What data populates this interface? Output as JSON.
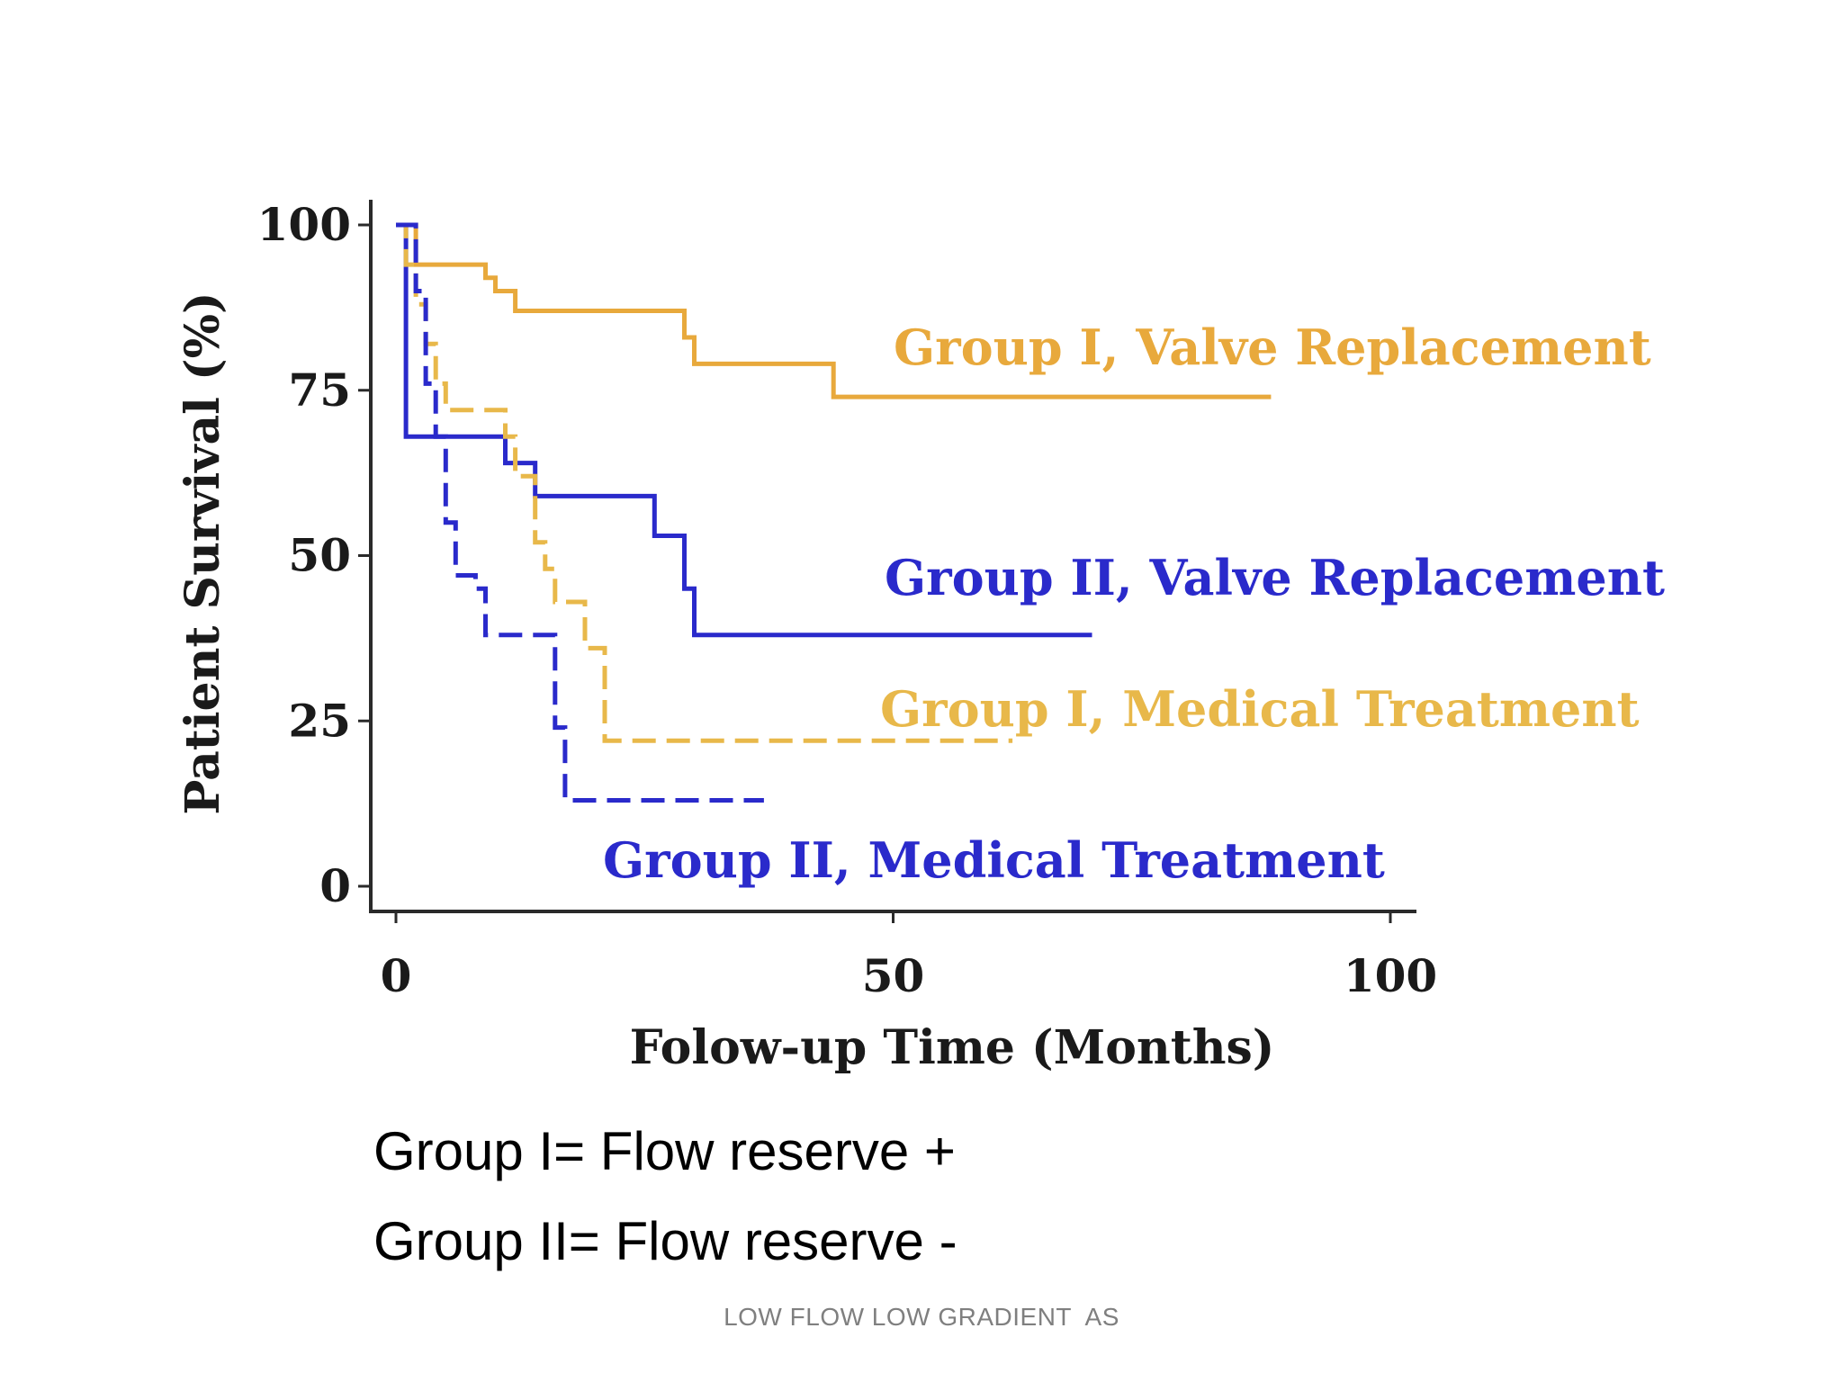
{
  "chart_data": {
    "type": "line",
    "step": true,
    "xlabel": "Folow-up Time (Months)",
    "ylabel": "Patient Survival (%)",
    "xlim": [
      0,
      100
    ],
    "ylim": [
      0,
      100
    ],
    "x_ticks": [
      "0",
      "50",
      "100"
    ],
    "y_ticks": [
      "100",
      "75",
      "50",
      "25",
      "0"
    ],
    "grid": false,
    "series": [
      {
        "name": "Group I, Valve Replacement",
        "color": "#E8A93C",
        "dash": "solid",
        "x": [
          0,
          2,
          7,
          9,
          10,
          12,
          28,
          29,
          30,
          43,
          44,
          88
        ],
        "y": [
          100,
          94,
          94,
          92,
          90,
          87,
          87,
          83,
          79,
          79,
          74,
          74
        ]
      },
      {
        "name": "Group II, Valve Replacement",
        "color": "#2A2ACB",
        "dash": "solid",
        "x": [
          0,
          1,
          10,
          11,
          13,
          14,
          25,
          26,
          28,
          29,
          30,
          70
        ],
        "y": [
          100,
          68,
          68,
          64,
          64,
          59,
          59,
          53,
          53,
          45,
          38,
          38
        ]
      },
      {
        "name": "Group I, Medical Treatment",
        "color": "#E8B84A",
        "dash": "dashed",
        "x": [
          0,
          1,
          2,
          3,
          4,
          5,
          10,
          11,
          12,
          14,
          15,
          16,
          18,
          19,
          21,
          62
        ],
        "y": [
          100,
          94,
          88,
          82,
          76,
          72,
          72,
          68,
          62,
          52,
          48,
          43,
          43,
          36,
          22,
          22
        ]
      },
      {
        "name": "Group II, Medical Treatment",
        "color": "#2A2ACB",
        "dash": "dashed",
        "x": [
          0,
          2,
          3,
          4,
          5,
          6,
          8,
          9,
          15,
          16,
          17,
          37
        ],
        "y": [
          100,
          90,
          76,
          68,
          55,
          47,
          45,
          38,
          38,
          24,
          13,
          13
        ]
      }
    ]
  },
  "notes": [
    "Group I= Flow reserve +",
    "Group II= Flow reserve -"
  ],
  "footer": "LOW FLOW LOW GRADIENT  AS"
}
